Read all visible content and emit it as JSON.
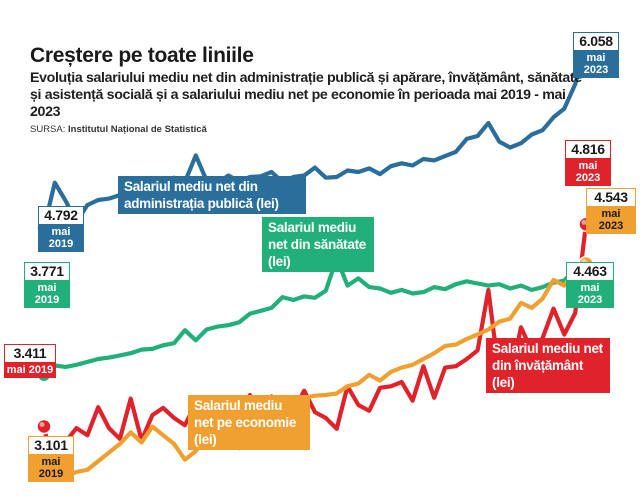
{
  "title": "Creștere pe toate liniile",
  "subtitle": "Evoluția salariului mediu net din administrație publică și apărare, învățământ, sănătate și asistență socială și a salariului mediu net pe economie în perioada mai 2019 - mai 2023",
  "source_label": "SURSA:",
  "source_name": "Institutul Național de Statistică",
  "colors": {
    "administratie": "#2a6f9c",
    "sanatate": "#21b07a",
    "invatamant": "#e0232b",
    "economie": "#f0a030"
  },
  "labels": {
    "administratie": "Salariul mediu net din administrația publică (lei)",
    "sanatate": "Salariul mediu net din sănătate (lei)",
    "invatamant": "Salariul mediu net din învățământ (lei)",
    "economie": "Salariul mediu net pe economie (lei)"
  },
  "callouts": {
    "admin_start": {
      "value": "4.792",
      "period": "mai 2019"
    },
    "admin_end": {
      "value": "6.058",
      "period": "mai 2023"
    },
    "sanatate_start": {
      "value": "3.771",
      "period": "mai 2019"
    },
    "sanatate_end": {
      "value": "4.463",
      "period": "mai 2023"
    },
    "invatamant_start": {
      "value": "3.411",
      "period": "mai 2019"
    },
    "invatamant_end": {
      "value": "4.816",
      "period": "mai 2023"
    },
    "economie_start": {
      "value": "3.101",
      "period": "mai 2019"
    },
    "economie_end": {
      "value": "4.543",
      "period": "mai 2023"
    }
  },
  "chart_data": {
    "type": "line",
    "x_start": "mai 2019",
    "x_end": "mai 2023",
    "ylim": [
      2900,
      6250
    ],
    "series": [
      {
        "name": "Salariul mediu net din administrația publică (lei)",
        "key": "administratie",
        "values": [
          4792,
          5105,
          4979,
          4833,
          4950,
          4985,
          4995,
          5020,
          5075,
          5045,
          5105,
          5060,
          5140,
          5110,
          5295,
          5120,
          5100,
          5155,
          5115,
          5145,
          5150,
          5180,
          5110,
          5145,
          5155,
          5210,
          5140,
          5145,
          5190,
          5180,
          5205,
          5165,
          5220,
          5240,
          5225,
          5270,
          5260,
          5290,
          5320,
          5410,
          5430,
          5520,
          5390,
          5350,
          5380,
          5440,
          5470,
          5560,
          5620,
          5790,
          6058
        ]
      },
      {
        "name": "Salariul mediu net din sănătate (lei)",
        "key": "sanatate",
        "values": [
          3771,
          3835,
          3825,
          3840,
          3860,
          3880,
          3890,
          3905,
          3920,
          3945,
          3950,
          3975,
          3990,
          4080,
          4010,
          4085,
          4105,
          4115,
          4135,
          4195,
          4215,
          4235,
          4310,
          4290,
          4315,
          4305,
          4355,
          4580,
          4390,
          4440,
          4380,
          4370,
          4340,
          4360,
          4335,
          4345,
          4380,
          4365,
          4400,
          4420,
          4405,
          4390,
          4400,
          4370,
          4390,
          4360,
          4380,
          4410,
          4425,
          4510,
          4463
        ]
      },
      {
        "name": "Salariul mediu net din învățământ (lei)",
        "key": "invatamant",
        "values": [
          3411,
          3060,
          3305,
          3400,
          3350,
          3545,
          3400,
          3325,
          3605,
          3315,
          3490,
          3540,
          3470,
          3420,
          3570,
          3390,
          3485,
          3500,
          3260,
          3630,
          3355,
          3620,
          3400,
          3520,
          3660,
          3510,
          3470,
          3395,
          3690,
          3560,
          3520,
          3680,
          3690,
          3720,
          3590,
          3830,
          3610,
          3820,
          3830,
          3880,
          3940,
          4360,
          3755,
          3740,
          4100,
          3935,
          4025,
          4230,
          4050,
          4200,
          4816
        ]
      },
      {
        "name": "Salariul mediu net pe economie (lei)",
        "key": "economie",
        "values": [
          3101,
          3095,
          3060,
          3095,
          3110,
          3170,
          3230,
          3290,
          3370,
          3300,
          3410,
          3350,
          3290,
          3180,
          3240,
          3360,
          3300,
          3350,
          3420,
          3470,
          3520,
          3580,
          3535,
          3560,
          3610,
          3625,
          3630,
          3640,
          3690,
          3710,
          3770,
          3730,
          3790,
          3820,
          3840,
          3880,
          3920,
          3970,
          3980,
          4020,
          4050,
          4085,
          4140,
          4160,
          4270,
          4235,
          4300,
          4430,
          4390,
          4500,
          4543
        ]
      }
    ]
  }
}
